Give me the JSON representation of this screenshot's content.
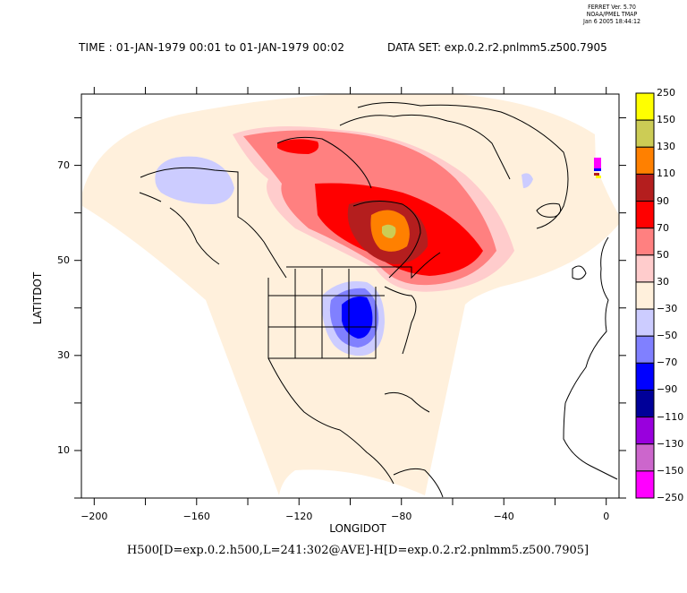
{
  "stamp": {
    "line1": "FERRET Ver. 5.70",
    "line2": "NOAA/PMEL TMAP",
    "line3": "Jan  6 2005 18:44:12"
  },
  "header": {
    "time": "TIME : 01-JAN-1979 00:01 to 01-JAN-1979 00:02",
    "dataset": "DATA SET: exp.0.2.r2.pnlmm5.z500.7905"
  },
  "footer": {
    "expression": "H500[D=exp.0.2.h500,L=241:302@AVE]-H[D=exp.0.2.r2.pnlmm5.z500.7905]"
  },
  "chart_data": {
    "type": "heatmap",
    "title": "TIME : 01-JAN-1979 00:01 to 01-JAN-1979 00:02",
    "subtitle": "DATA SET: exp.0.2.r2.pnlmm5.z500.7905",
    "xlabel": "LONGIDOT",
    "ylabel": "LATITDOT",
    "xlim": [
      -205,
      5
    ],
    "ylim": [
      0,
      85
    ],
    "x_ticks": [
      -200,
      -160,
      -120,
      -80,
      -40,
      0
    ],
    "y_ticks": [
      10,
      30,
      50,
      70
    ],
    "colorbar": {
      "labels": [
        "250",
        "150",
        "130",
        "110",
        "90",
        "70",
        "50",
        "30",
        "-30",
        "-50",
        "-70",
        "-90",
        "-110",
        "-130",
        "-150",
        "-250"
      ],
      "colors": [
        "#ffff00",
        "#cccc55",
        "#ff8000",
        "#b41e1e",
        "#ff0000",
        "#ff8080",
        "#ffcccc",
        "#fff0dc",
        "#ccccff",
        "#8080ff",
        "#0000ff",
        "#000099",
        "#9900dd",
        "#cc66cc",
        "#ff00ff"
      ]
    },
    "features": [
      {
        "name": "positive anomaly max",
        "center_lon": -81,
        "center_lat": 59,
        "peak_level": "130 to 150"
      },
      {
        "name": "positive anomaly secondary",
        "center_lon": -115,
        "center_lat": 74,
        "peak_level": "70 to 90"
      },
      {
        "name": "negative anomaly US",
        "center_lon": -95,
        "center_lat": 41,
        "peak_level": "-70 to -90"
      },
      {
        "name": "negative anomaly Alaska",
        "center_lon": -150,
        "center_lat": 67,
        "peak_level": "-30 to -50"
      }
    ]
  }
}
